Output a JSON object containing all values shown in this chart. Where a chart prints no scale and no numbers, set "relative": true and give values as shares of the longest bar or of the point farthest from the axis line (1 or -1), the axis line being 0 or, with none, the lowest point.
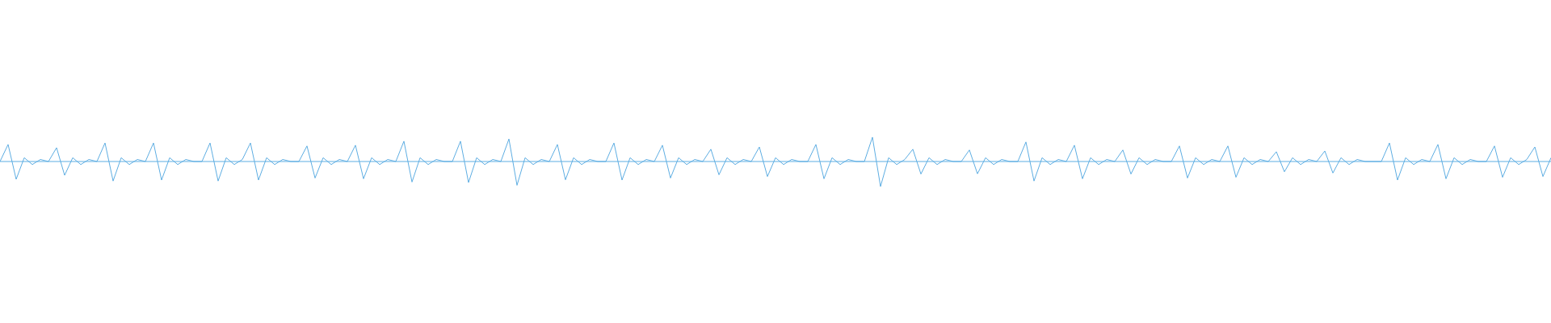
{
  "chart_data": {
    "type": "line",
    "relative": true,
    "color": "#5dade2",
    "ref_lines": [
      {
        "axis": "y",
        "value": 0,
        "color": "#5dade2"
      }
    ],
    "categories": [
      null,
      null,
      null,
      null,
      null,
      null,
      null,
      null,
      null,
      null,
      null,
      null,
      null,
      null,
      null,
      null,
      null,
      null,
      null,
      null,
      null,
      null,
      null,
      null,
      null,
      null,
      null,
      null,
      null,
      null,
      null,
      null,
      null,
      null,
      null,
      null,
      null,
      null,
      null,
      null,
      null,
      null,
      null,
      null,
      null,
      null,
      null,
      null,
      null,
      null,
      null,
      null,
      null,
      null,
      null,
      null,
      null,
      null,
      null,
      null,
      null,
      null,
      null,
      null,
      null,
      null,
      null,
      null,
      null,
      null,
      null,
      null,
      null,
      null,
      null,
      null,
      null,
      null,
      null,
      null,
      null,
      null,
      null,
      null,
      null,
      null,
      null,
      null,
      null,
      null,
      null,
      null,
      null,
      null,
      null,
      null,
      null,
      null,
      null,
      null,
      null,
      null,
      null,
      null,
      null,
      null,
      null,
      null,
      null,
      null,
      null,
      null,
      null,
      null,
      null,
      null,
      null,
      null,
      null,
      null,
      null,
      null,
      null,
      null,
      null,
      null,
      null,
      null,
      null,
      null,
      null,
      null,
      null,
      null,
      null,
      null,
      null,
      null,
      null,
      null,
      null,
      null,
      null,
      null,
      null,
      null,
      null,
      null,
      null,
      null,
      null,
      null,
      null,
      null,
      null,
      null,
      null,
      null,
      null,
      null,
      null,
      null,
      null,
      null,
      null,
      null,
      null,
      null,
      null,
      null,
      null,
      null,
      null,
      null,
      null,
      null,
      null,
      null,
      null,
      null,
      null,
      null,
      null,
      null,
      null,
      null,
      null,
      null,
      null,
      null,
      null,
      null,
      null
    ],
    "values": [
      0,
      0.68,
      -0.71,
      0.15,
      -0.12,
      0.08,
      0,
      0.55,
      -0.55,
      0.15,
      -0.12,
      0.08,
      0,
      0.74,
      -0.78,
      0.15,
      -0.12,
      0.08,
      0,
      0.74,
      -0.74,
      0.15,
      -0.12,
      0.08,
      0,
      0,
      0.74,
      -0.78,
      0.15,
      -0.12,
      0.08,
      0.74,
      -0.74,
      0.15,
      -0.12,
      0.08,
      0,
      0,
      0.62,
      -0.66,
      0.15,
      -0.12,
      0.08,
      0,
      0.65,
      -0.69,
      0.15,
      -0.12,
      0.08,
      0,
      0.81,
      -0.82,
      0.15,
      -0.12,
      0.08,
      0,
      0,
      0.81,
      -0.84,
      0.15,
      -0.12,
      0.08,
      0,
      0.9,
      -0.95,
      0.15,
      -0.12,
      0.08,
      0,
      0.68,
      -0.73,
      0.15,
      -0.12,
      0.08,
      0,
      0,
      0.74,
      -0.74,
      0.15,
      -0.12,
      0.08,
      0,
      0.65,
      -0.66,
      0.15,
      -0.12,
      0.08,
      0,
      0.49,
      -0.53,
      0.15,
      -0.12,
      0.08,
      0,
      0.58,
      -0.6,
      0.15,
      -0.12,
      0.08,
      0,
      0,
      0.68,
      -0.69,
      0.15,
      -0.12,
      0.08,
      0,
      0,
      0.97,
      -1,
      0.15,
      -0.12,
      0.08,
      0.49,
      -0.5,
      0.15,
      -0.12,
      0.08,
      0,
      0,
      0.46,
      -0.49,
      0.15,
      -0.12,
      0.08,
      0,
      0,
      0.78,
      -0.78,
      0.15,
      -0.12,
      0.08,
      0,
      0.65,
      -0.69,
      0.15,
      -0.12,
      0.08,
      0,
      0.46,
      -0.5,
      0.15,
      -0.12,
      0.08,
      0,
      0,
      0.62,
      -0.66,
      0.15,
      -0.12,
      0.08,
      0,
      0.62,
      -0.63,
      0.15,
      -0.12,
      0.08,
      0,
      0.39,
      -0.41,
      0.15,
      -0.12,
      0.08,
      0,
      0.42,
      -0.46,
      0.15,
      -0.12,
      0.08,
      0,
      0,
      0,
      0.74,
      -0.74,
      0.15,
      -0.12,
      0.08,
      0,
      0.68,
      -0.69,
      0.15,
      -0.12,
      0.08,
      0,
      0,
      0.62,
      -0.63,
      0.15,
      -0.12,
      0.08,
      0.58,
      -0.6,
      0.15
    ]
  }
}
